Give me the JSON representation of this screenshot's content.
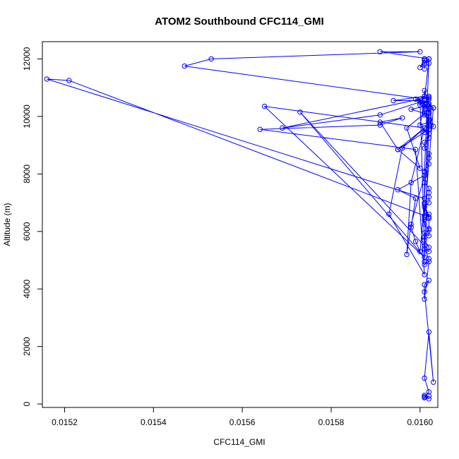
{
  "chart_data": {
    "type": "line",
    "title": "ATOM2 Southbound CFC114_GMI",
    "xlabel": "CFC114_GMI",
    "ylabel": "Altitude (m)",
    "xlim": [
      0.01515,
      0.01604
    ],
    "ylim": [
      -120,
      12600
    ],
    "xticks": [
      0.0152,
      0.0154,
      0.0156,
      0.0158,
      0.016
    ],
    "xtick_labels": [
      "0.0152",
      "0.0154",
      "0.0156",
      "0.0158",
      "0.0160"
    ],
    "yticks": [
      0,
      2000,
      4000,
      6000,
      8000,
      10000,
      12000
    ],
    "ytick_labels": [
      "0",
      "2000",
      "4000",
      "6000",
      "8000",
      "10000",
      "12000"
    ],
    "grid": false,
    "legend": "none",
    "color": "#0000ff",
    "series": [
      {
        "x": [
          0.01601,
          0.01602,
          0.01601,
          0.01602,
          0.01601,
          0.01602,
          0.01601,
          0.01602,
          0.01603,
          0.01601,
          0.01602,
          0.01601,
          0.01601,
          0.01602,
          0.01601,
          0.01602,
          0.01601,
          0.01602,
          0.01602,
          0.01601,
          0.01601,
          0.01602,
          0.01602,
          0.01601,
          0.01601,
          0.01602,
          0.01602,
          0.01601,
          0.01602,
          0.01602,
          0.01602,
          0.01602,
          0.01601,
          0.01601,
          0.01601,
          0.01602,
          0.01602,
          0.01602,
          0.01601,
          0.01601,
          0.01602,
          0.01602,
          0.01602,
          0.01602,
          0.01602,
          0.01601,
          0.01601,
          0.01601,
          0.01602,
          0.01602,
          0.01602,
          0.01603,
          0.01601,
          0.01601,
          0.01602,
          0.01602,
          0.01602,
          0.01601,
          0.01601,
          0.01602,
          0.01601,
          0.01601,
          0.01601,
          0.01602,
          0.01602,
          0.01601,
          0.016,
          0.01599,
          0.01598,
          0.01599,
          0.01595,
          0.01601,
          0.01598,
          0.01597,
          0.01598,
          0.01601,
          0.01596,
          0.01593,
          0.01601,
          0.01599,
          0.01564,
          0.01591,
          0.01596,
          0.01591,
          0.01595,
          0.01601,
          0.01565,
          0.01601,
          0.01573,
          0.01601,
          0.016,
          0.01569,
          0.01591,
          0.01601,
          0.01594,
          0.01601,
          0.016,
          0.01602,
          0.01603,
          0.01602,
          0.01595,
          0.016,
          0.01597,
          0.01601,
          0.01598,
          0.01601,
          0.01599,
          0.01602,
          0.01602,
          0.016,
          0.01601,
          0.016,
          0.01602,
          0.01602,
          0.01601,
          0.01602,
          0.01601,
          0.01601,
          0.01602,
          0.01601,
          0.01602,
          0.01603,
          0.01601,
          0.01601,
          0.01601,
          0.01516,
          0.01521,
          0.01601,
          0.01601,
          0.01602,
          0.016,
          0.01601,
          0.01601,
          0.01601,
          0.01601,
          0.01601,
          0.01601,
          0.01601,
          0.01601,
          0.01601,
          0.01602,
          0.01602,
          0.01591,
          0.016,
          0.01553,
          0.01547,
          0.01601,
          0.01602
        ],
        "y": [
          300,
          180,
          250,
          280,
          220,
          420,
          900,
          2500,
          760,
          3900,
          4300,
          4150,
          3650,
          4950,
          4850,
          5050,
          5400,
          5300,
          5450,
          5700,
          5950,
          5850,
          6050,
          6250,
          6400,
          6600,
          6450,
          6850,
          7000,
          7200,
          7350,
          7500,
          7700,
          7950,
          8100,
          8350,
          8550,
          8700,
          8900,
          9100,
          9250,
          9400,
          9550,
          9700,
          9850,
          10050,
          10250,
          10450,
          10700,
          10650,
          10350,
          10300,
          10550,
          10150,
          9900,
          10000,
          9750,
          9450,
          9600,
          9800,
          4950,
          5400,
          5800,
          6100,
          6500,
          6950,
          5300,
          5650,
          6150,
          7150,
          7450,
          7950,
          6250,
          5200,
          7700,
          9600,
          8900,
          6600,
          4500,
          8850,
          9550,
          9700,
          9950,
          9800,
          8850,
          9600,
          10350,
          5100,
          10150,
          5500,
          10600,
          9600,
          10050,
          10550,
          10550,
          10700,
          10400,
          10300,
          9650,
          9550,
          8850,
          8200,
          9600,
          10100,
          10250,
          10350,
          10600,
          10450,
          9800,
          9700,
          10450,
          10500,
          10350,
          10100,
          7150,
          10400,
          10900,
          10700,
          10600,
          10450,
          10150,
          10300,
          6500,
          7000,
          7150,
          11300,
          11250,
          6550,
          8050,
          12000,
          11700,
          12000,
          11650,
          12000,
          11950,
          11850,
          11800,
          11950,
          12000,
          11950,
          11850,
          12000,
          12250,
          12250,
          12000,
          11750,
          10600,
          12000
        ]
      }
    ]
  }
}
